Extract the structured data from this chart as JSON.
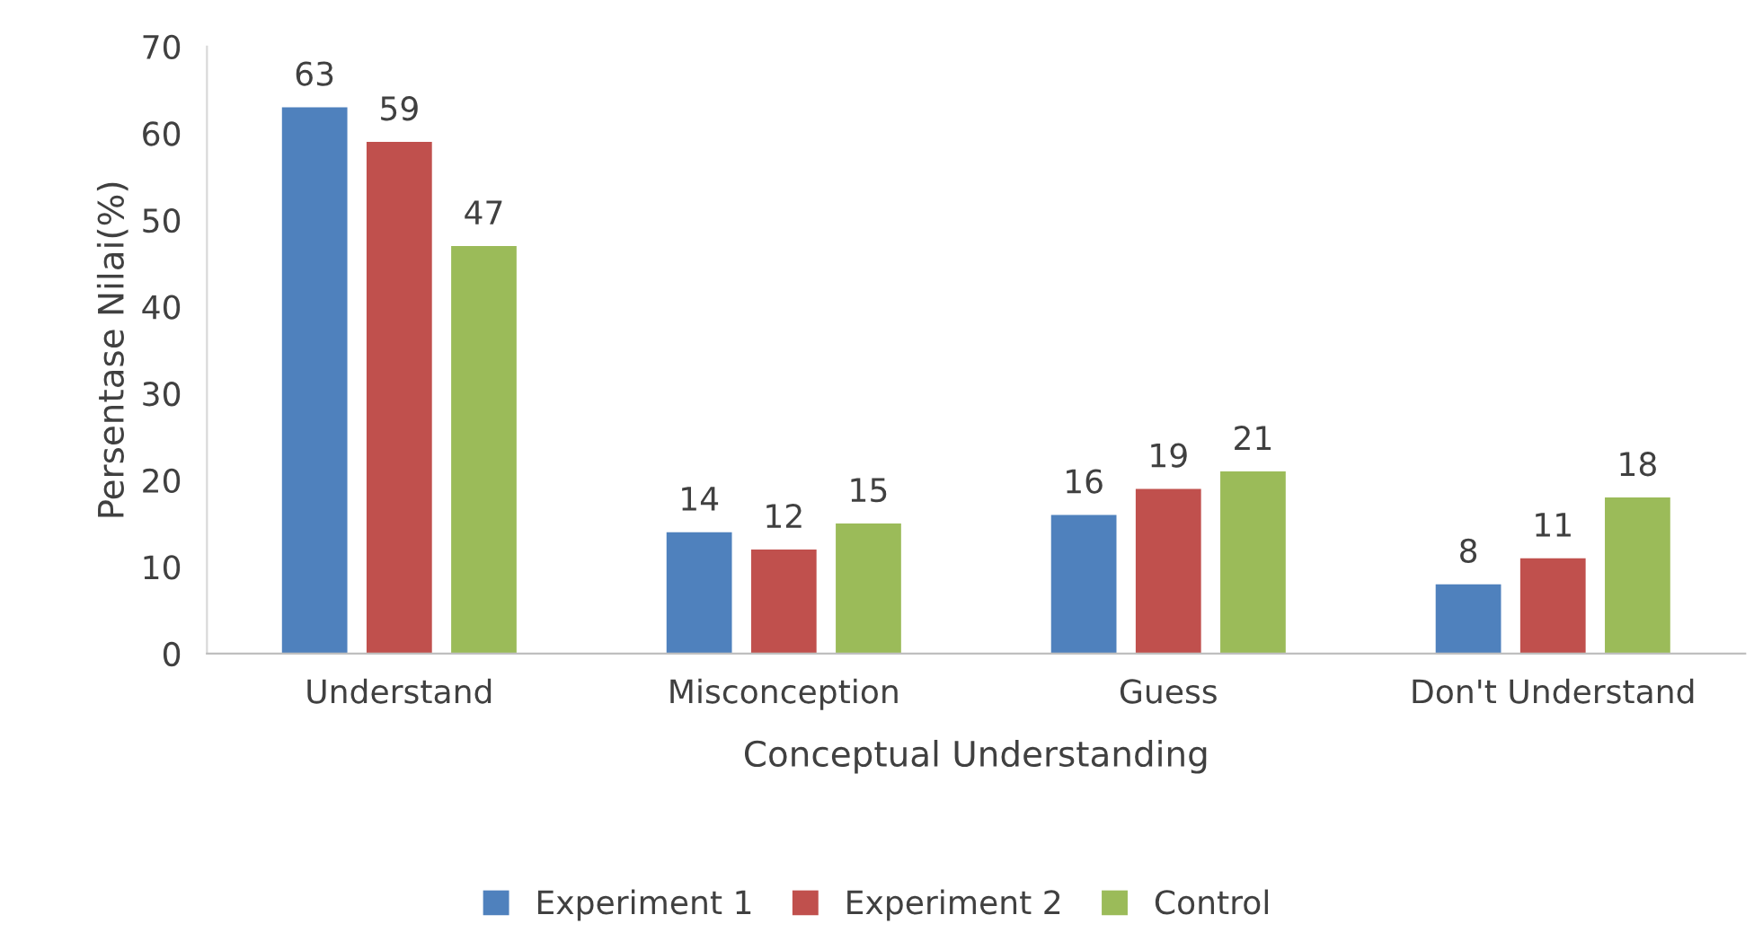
{
  "chart_data": {
    "type": "bar",
    "xlabel": "Conceptual Understanding",
    "ylabel": "Persentase Nilai(%)",
    "categories": [
      "Understand",
      "Misconception",
      "Guess",
      "Don't Understand"
    ],
    "series": [
      {
        "name": "Experiment 1",
        "color": "#4f81bd",
        "values": [
          63,
          14,
          16,
          8
        ]
      },
      {
        "name": "Experiment 2",
        "color": "#c0504d",
        "values": [
          59,
          12,
          19,
          11
        ]
      },
      {
        "name": "Control",
        "color": "#9bbb59",
        "values": [
          47,
          15,
          21,
          18
        ]
      }
    ],
    "ylim": [
      0,
      70
    ],
    "yticks": [
      0,
      10,
      20,
      30,
      40,
      50,
      60,
      70
    ],
    "grid": false,
    "legend": "bottom",
    "data_labels": true
  }
}
